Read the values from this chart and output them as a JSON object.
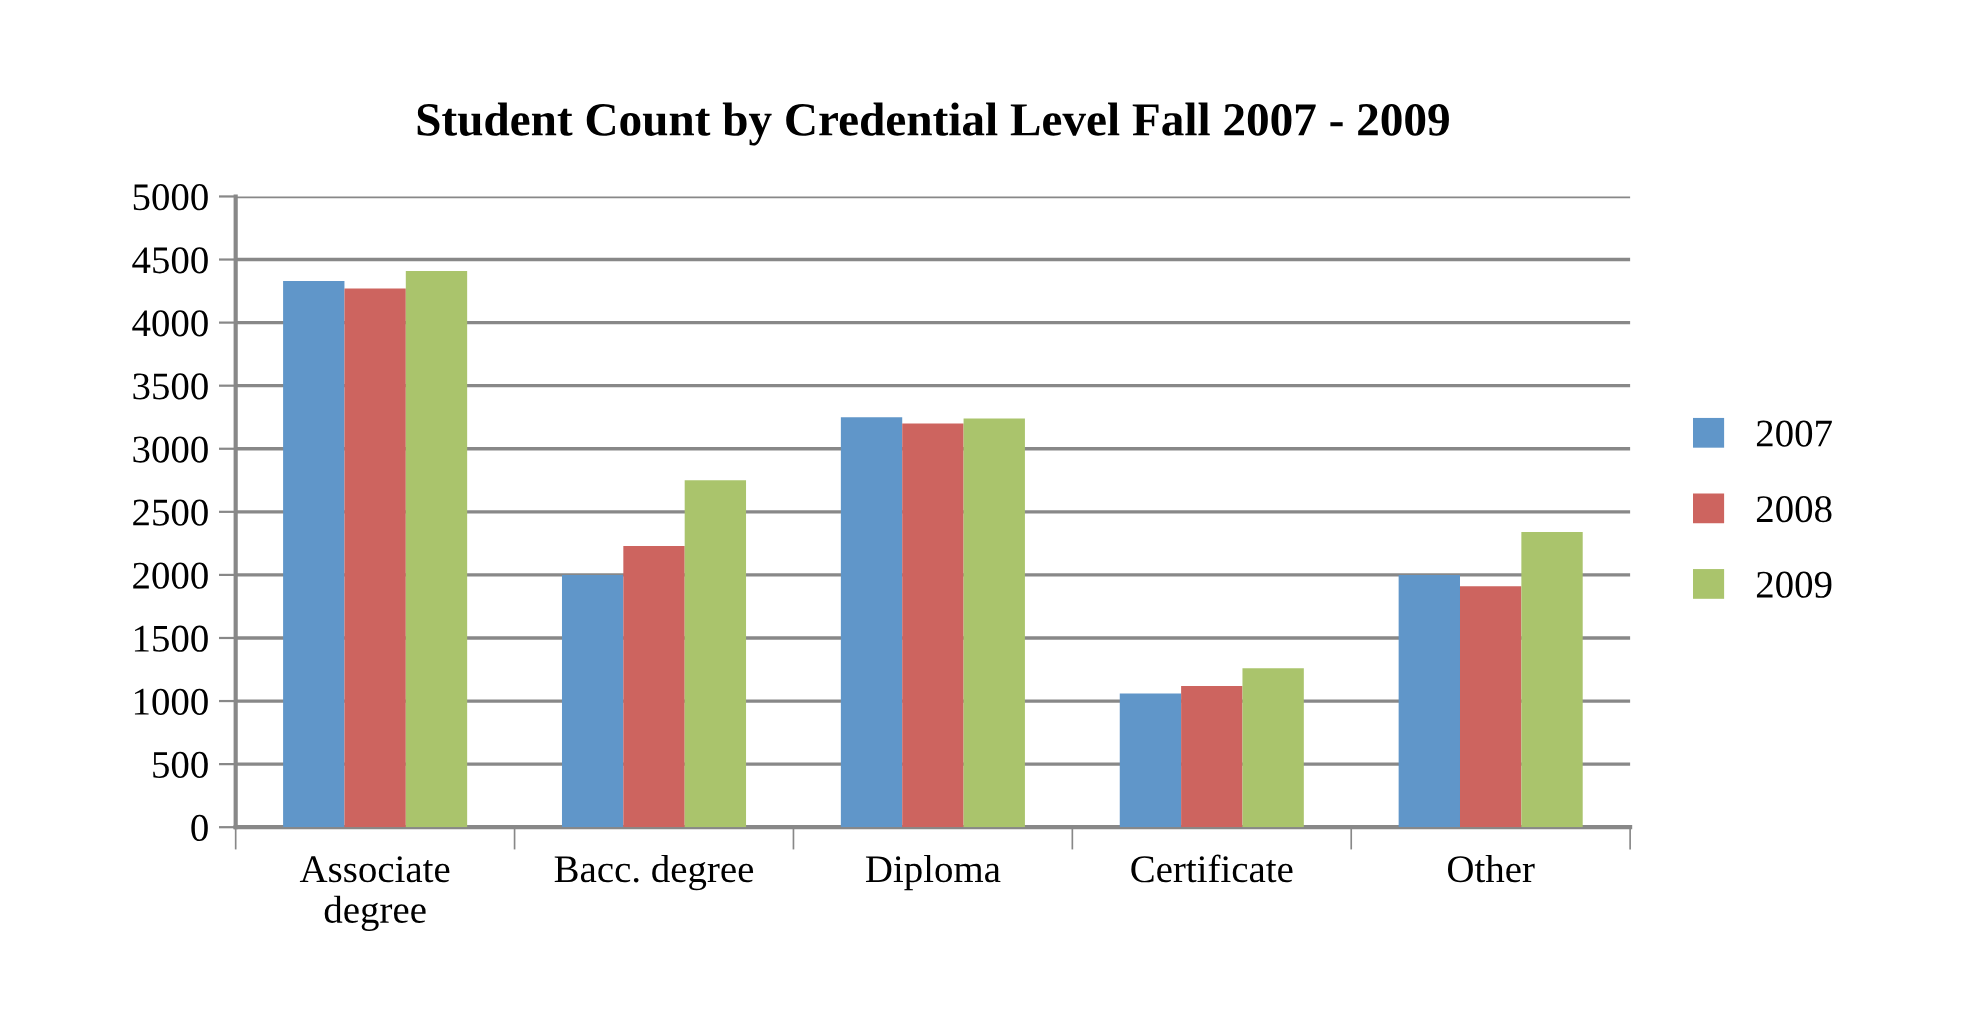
{
  "chart_data": {
    "type": "bar",
    "title": "Student Count by Credential Level Fall 2007 - 2009",
    "categories": [
      "Associate\ndegree",
      "Bacc. degree",
      "Diploma",
      "Certificate",
      "Other"
    ],
    "series": [
      {
        "name": "2007",
        "color": "#6096c9",
        "values": [
          4330,
          2000,
          3250,
          1060,
          2000
        ]
      },
      {
        "name": "2008",
        "color": "#cd645f",
        "values": [
          4270,
          2230,
          3200,
          1120,
          1910
        ]
      },
      {
        "name": "2009",
        "color": "#aac46c",
        "values": [
          4410,
          2750,
          3240,
          1260,
          2340
        ]
      }
    ],
    "ylim": [
      0,
      5000
    ],
    "yticks": [
      0,
      500,
      1000,
      1500,
      2000,
      2500,
      3000,
      3500,
      4000,
      4500,
      5000
    ],
    "grid": "y",
    "legend": "right"
  }
}
